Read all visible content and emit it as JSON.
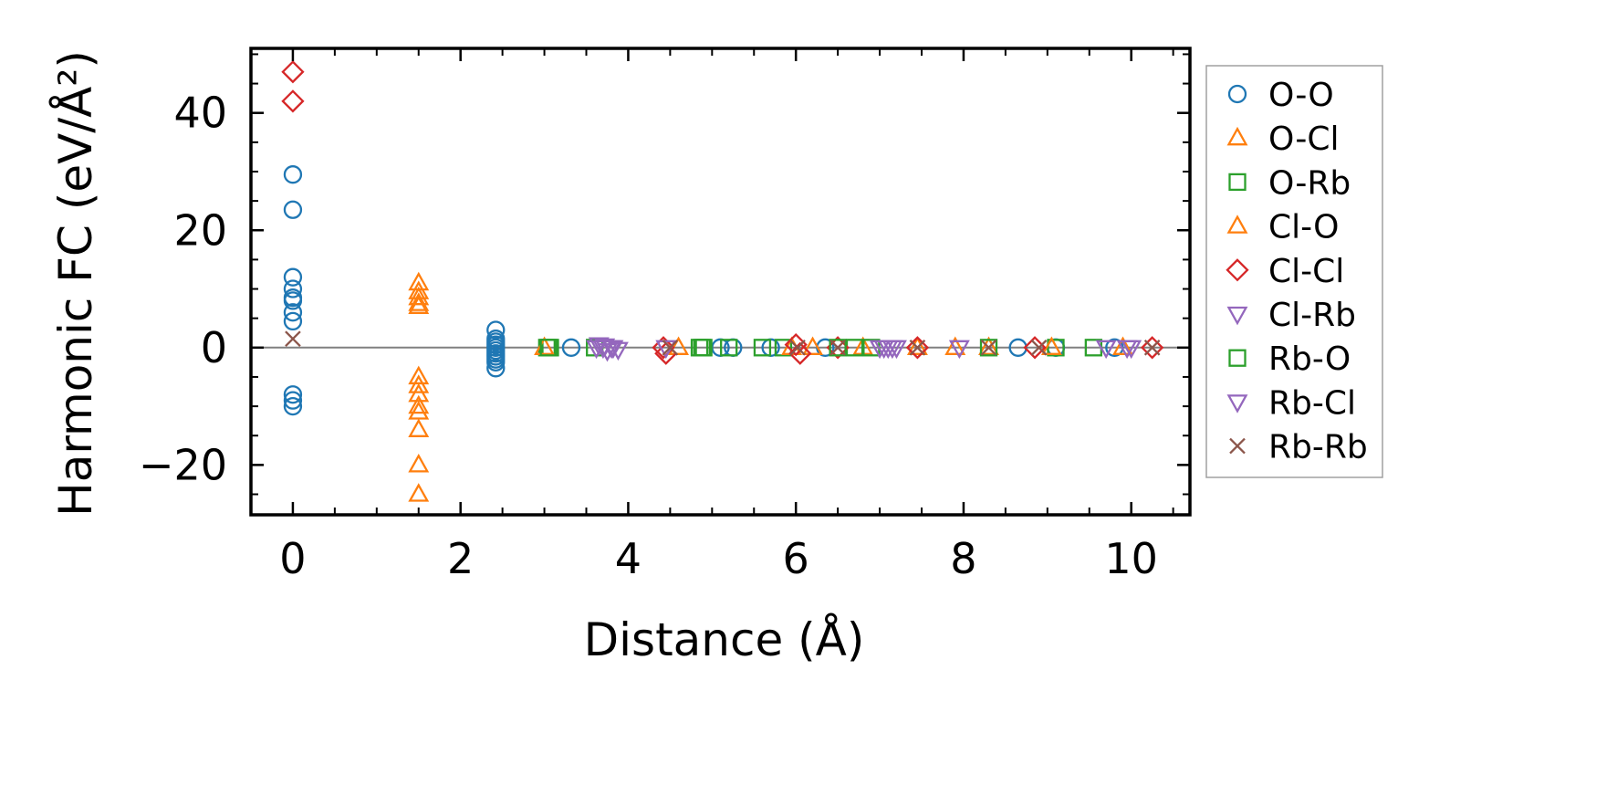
{
  "chart_data": {
    "type": "scatter",
    "xlabel": "Distance (Å)",
    "ylabel": "Harmonic FC (eV/Å²)",
    "xlim": [
      -0.5,
      10.7
    ],
    "ylim": [
      -28.5,
      51
    ],
    "x_ticks": [
      0,
      2,
      4,
      6,
      8,
      10
    ],
    "x_tick_labels": [
      "0",
      "2",
      "4",
      "6",
      "8",
      "10"
    ],
    "y_ticks": [
      -20,
      0,
      20,
      40
    ],
    "y_tick_labels": [
      "−20",
      "0",
      "20",
      "40"
    ],
    "zero_line": true,
    "grid": false,
    "legend_position": "right-outside",
    "series": [
      {
        "name": "O-O",
        "marker": "circle",
        "color": "#1f77b4",
        "points": [
          [
            0,
            29.5
          ],
          [
            0,
            23.5
          ],
          [
            0,
            12
          ],
          [
            0,
            10
          ],
          [
            0,
            8.5
          ],
          [
            0,
            8
          ],
          [
            0,
            6
          ],
          [
            0,
            4.5
          ],
          [
            0,
            -8
          ],
          [
            0,
            -9
          ],
          [
            0,
            -10
          ],
          [
            2.42,
            3
          ],
          [
            2.42,
            1.5
          ],
          [
            2.42,
            1
          ],
          [
            2.42,
            0.5
          ],
          [
            2.42,
            0
          ],
          [
            2.42,
            -0.5
          ],
          [
            2.42,
            -1
          ],
          [
            2.42,
            -1.5
          ],
          [
            2.42,
            -2
          ],
          [
            2.42,
            -2.5
          ],
          [
            2.42,
            -3.5
          ],
          [
            3.32,
            0
          ],
          [
            5.1,
            0
          ],
          [
            5.25,
            0
          ],
          [
            5.7,
            0
          ],
          [
            6.35,
            0
          ],
          [
            8.65,
            0
          ],
          [
            9.1,
            0
          ],
          [
            9.8,
            0
          ]
        ]
      },
      {
        "name": "O-Cl",
        "marker": "triangle-up",
        "color": "#ff7f0e",
        "points": [
          [
            1.5,
            11
          ],
          [
            1.5,
            9.5
          ],
          [
            1.5,
            8.5
          ],
          [
            1.5,
            7.5
          ],
          [
            1.5,
            7
          ],
          [
            1.5,
            -5
          ],
          [
            1.5,
            -6.5
          ],
          [
            1.5,
            -8
          ],
          [
            1.5,
            -10
          ],
          [
            1.5,
            -11
          ],
          [
            1.5,
            -14
          ],
          [
            1.5,
            -20
          ],
          [
            1.5,
            -25
          ],
          [
            4.6,
            0
          ],
          [
            6.2,
            0
          ],
          [
            6.8,
            0
          ],
          [
            7.9,
            0
          ],
          [
            9.9,
            0
          ]
        ]
      },
      {
        "name": "O-Rb",
        "marker": "square",
        "color": "#2ca02c",
        "points": [
          [
            3.03,
            0
          ],
          [
            3.07,
            0
          ],
          [
            3.6,
            0
          ],
          [
            4.85,
            0
          ],
          [
            4.9,
            0
          ],
          [
            5.2,
            0
          ],
          [
            5.6,
            0
          ],
          [
            5.85,
            0
          ],
          [
            6.7,
            0
          ],
          [
            6.9,
            0
          ],
          [
            9.1,
            0
          ],
          [
            9.55,
            0
          ]
        ]
      },
      {
        "name": "Cl-O",
        "marker": "triangle-up",
        "color": "#ff7f0e",
        "points": [
          [
            3.0,
            0
          ],
          [
            5.95,
            0
          ],
          [
            7.45,
            0
          ],
          [
            8.3,
            0
          ],
          [
            9.05,
            0
          ]
        ]
      },
      {
        "name": "Cl-Cl",
        "marker": "diamond",
        "color": "#d62728",
        "points": [
          [
            0,
            47
          ],
          [
            0,
            42
          ],
          [
            4.42,
            0
          ],
          [
            4.45,
            -1
          ],
          [
            6.0,
            0.5
          ],
          [
            6.05,
            -1
          ],
          [
            6.5,
            0
          ],
          [
            7.45,
            0
          ],
          [
            8.85,
            0
          ],
          [
            10.25,
            0
          ]
        ]
      },
      {
        "name": "Cl-Rb",
        "marker": "triangle-down",
        "color": "#9467bd",
        "points": [
          [
            3.65,
            0.5
          ],
          [
            3.7,
            0
          ],
          [
            3.75,
            -0.5
          ],
          [
            3.8,
            0
          ],
          [
            3.88,
            -0.3
          ],
          [
            7.0,
            0
          ],
          [
            7.1,
            0
          ],
          [
            7.2,
            0
          ],
          [
            9.7,
            0
          ],
          [
            10.0,
            0
          ]
        ]
      },
      {
        "name": "Rb-O",
        "marker": "square",
        "color": "#2ca02c",
        "points": [
          [
            3.05,
            0
          ],
          [
            4.88,
            0
          ],
          [
            6.5,
            0
          ],
          [
            8.3,
            0
          ]
        ]
      },
      {
        "name": "Rb-Cl",
        "marker": "triangle-down",
        "color": "#9467bd",
        "points": [
          [
            3.62,
            0
          ],
          [
            3.72,
            0.3
          ],
          [
            3.82,
            0
          ],
          [
            4.45,
            0
          ],
          [
            7.05,
            0
          ],
          [
            7.15,
            0
          ],
          [
            7.95,
            0
          ],
          [
            9.95,
            0
          ]
        ]
      },
      {
        "name": "Rb-Rb",
        "marker": "x",
        "color": "#8c564b",
        "points": [
          [
            0,
            1.5
          ],
          [
            4.5,
            0
          ],
          [
            6.02,
            0
          ],
          [
            6.5,
            0
          ],
          [
            7.45,
            0
          ],
          [
            8.3,
            0
          ],
          [
            8.9,
            0
          ],
          [
            10.25,
            0
          ]
        ]
      }
    ]
  }
}
